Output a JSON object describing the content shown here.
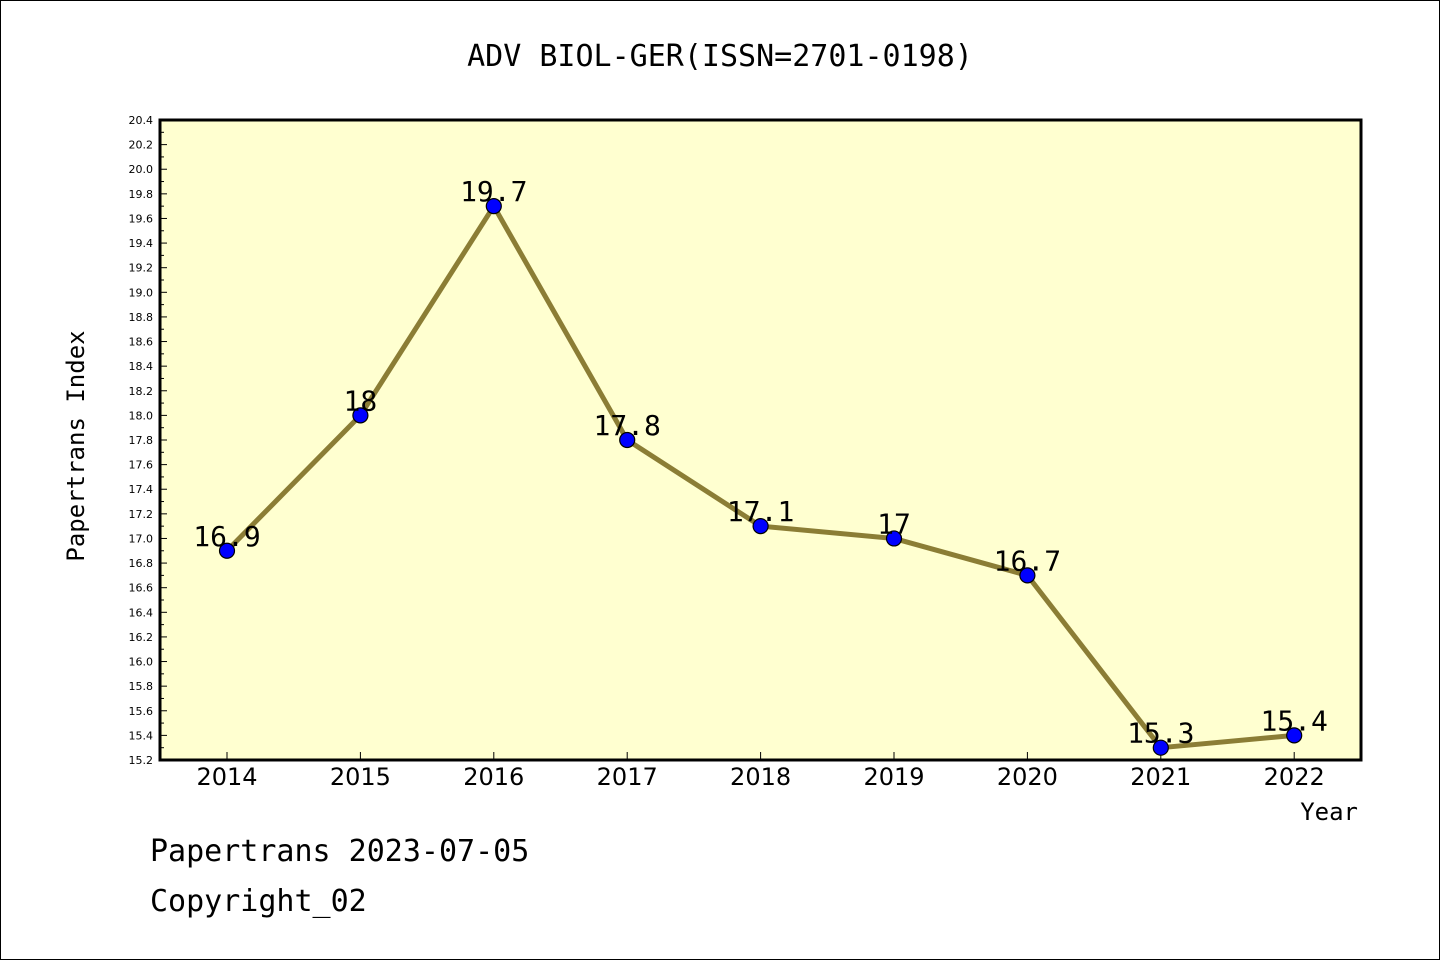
{
  "chart_data": {
    "type": "line",
    "title": "ADV BIOL-GER(ISSN=2701-0198)",
    "xlabel": "Year",
    "ylabel": "Papertrans Index",
    "categories": [
      "2014",
      "2015",
      "2016",
      "2017",
      "2018",
      "2019",
      "2020",
      "2021",
      "2022"
    ],
    "values": [
      16.9,
      18,
      19.7,
      17.8,
      17.1,
      17,
      16.7,
      15.3,
      15.4
    ],
    "data_labels": [
      "16.9",
      "18",
      "19.7",
      "17.8",
      "17.1",
      "17",
      "16.7",
      "15.3",
      "15.4"
    ],
    "ylim": [
      15.2,
      20.4
    ],
    "yticks": [
      "15.2",
      "15.4",
      "15.6",
      "15.8",
      "16.0",
      "16.2",
      "16.4",
      "16.6",
      "16.8",
      "17.0",
      "17.2",
      "17.4",
      "17.6",
      "17.8",
      "18.0",
      "18.2",
      "18.4",
      "18.6",
      "18.8",
      "19.0",
      "19.2",
      "19.4",
      "19.6",
      "19.8",
      "20.0",
      "20.2",
      "20.4"
    ],
    "grid": false,
    "colors": {
      "plot_background": "#ffffd0",
      "line": "#8b7d35",
      "marker": "#0000ff"
    }
  },
  "footer": {
    "line1": "Papertrans 2023-07-05",
    "line2": "Copyright_02"
  }
}
